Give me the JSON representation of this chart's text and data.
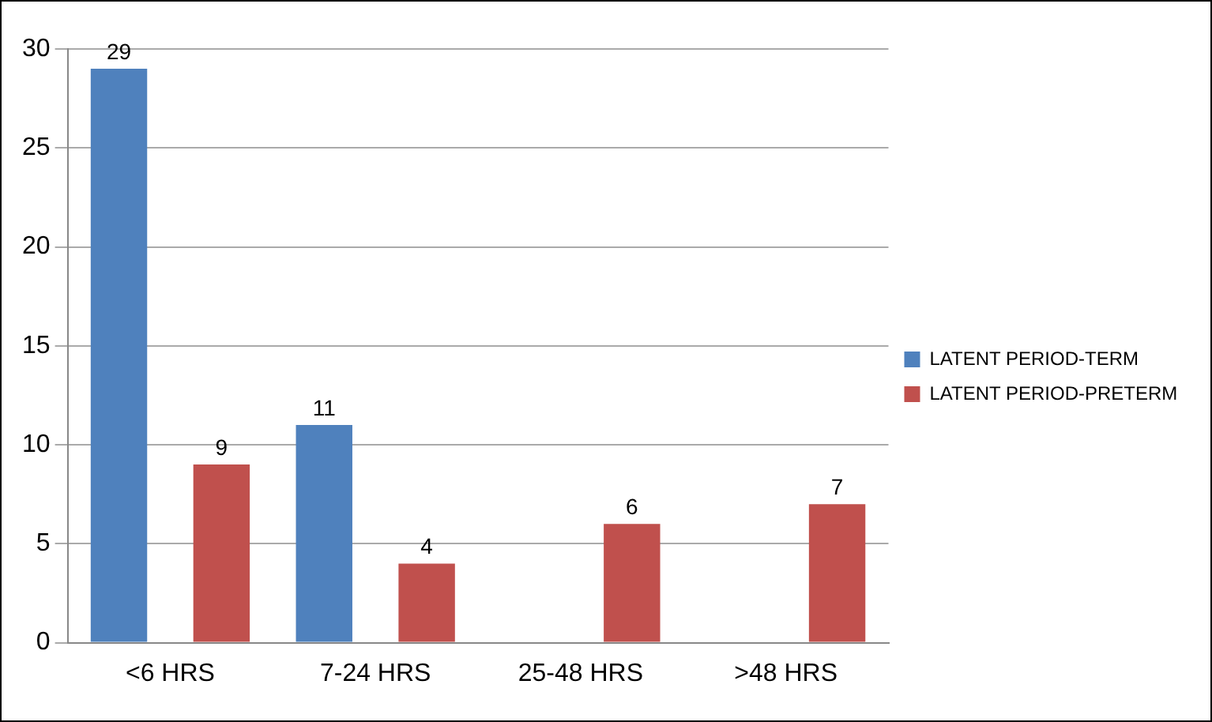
{
  "chart_data": {
    "type": "bar",
    "categories": [
      "<6 HRS",
      "7-24 HRS",
      "25-48 HRS",
      ">48 HRS"
    ],
    "series": [
      {
        "name": "LATENT PERIOD-TERM",
        "color": "#4f81bd",
        "values": [
          29,
          11,
          0,
          0
        ],
        "value_labels": [
          "29",
          "11",
          null,
          null
        ]
      },
      {
        "name": "LATENT PERIOD-PRETERM",
        "color": "#c0504d",
        "values": [
          9,
          4,
          6,
          7
        ],
        "value_labels": [
          "9",
          "4",
          "6",
          "7"
        ]
      }
    ],
    "ylim": [
      0,
      30
    ],
    "yticks": [
      0,
      5,
      10,
      15,
      20,
      25,
      30
    ],
    "grid": "y",
    "legend": "right"
  }
}
